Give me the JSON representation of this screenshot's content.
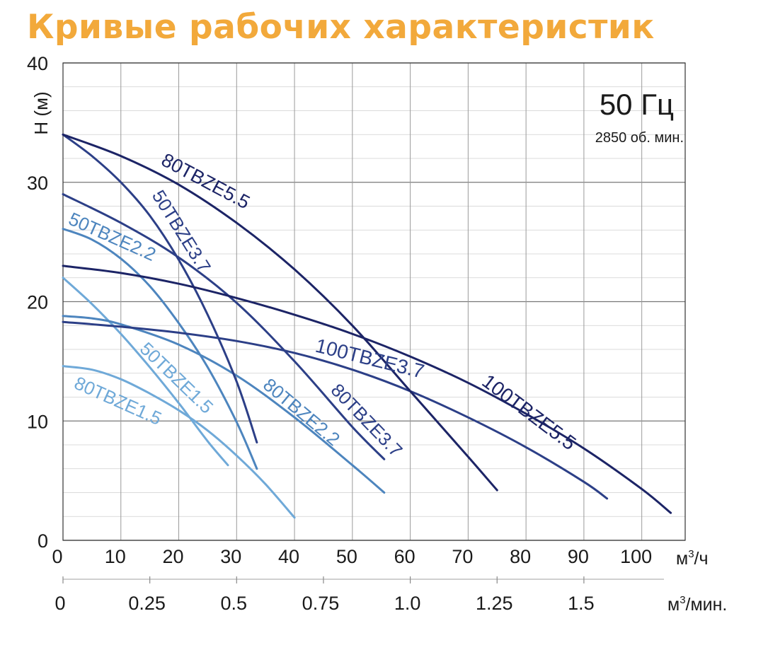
{
  "chart_data": {
    "type": "line",
    "title": "Кривые рабочих характеристик",
    "title_color": "#F2A93B",
    "ylabel": "H (м)",
    "xlabel": "м³/ч",
    "xlabel_base": "м",
    "xlabel_sup": "3",
    "xlabel_rest": "/ч",
    "x2label": "м³/мин.",
    "x2label_base": "м",
    "x2label_sup": "3",
    "x2label_rest": "/мин.",
    "frequency_label": "50 Гц",
    "speed_label": "2850 об. мин.",
    "xlim": [
      0,
      107.5
    ],
    "ylim": [
      0,
      40
    ],
    "x_ticks": [
      0,
      10,
      20,
      30,
      40,
      50,
      60,
      70,
      80,
      90,
      100
    ],
    "y_ticks": [
      0,
      10,
      20,
      30,
      40
    ],
    "x2_ticks": [
      {
        "label": "0",
        "value_m3h": 0
      },
      {
        "label": "0.25",
        "value_m3h": 15
      },
      {
        "label": "0.5",
        "value_m3h": 30
      },
      {
        "label": "0.75",
        "value_m3h": 45
      },
      {
        "label": "1.0",
        "value_m3h": 60
      },
      {
        "label": "1.25",
        "value_m3h": 75
      },
      {
        "label": "1.5",
        "value_m3h": 90
      }
    ],
    "grid": true,
    "series": [
      {
        "name": "50TBZE1.5",
        "color": "#6FA9D8",
        "x": [
          0,
          5,
          10,
          15,
          20,
          25,
          28.5
        ],
        "y": [
          22,
          19.8,
          17.3,
          14.5,
          11.5,
          8.3,
          6.3
        ]
      },
      {
        "name": "80TBZE1.5",
        "color": "#6FA9D8",
        "x": [
          0,
          5,
          10,
          15,
          20,
          25,
          30,
          35,
          40
        ],
        "y": [
          14.6,
          14.3,
          13.5,
          12.3,
          10.9,
          9.2,
          7.1,
          4.7,
          1.9
        ]
      },
      {
        "name": "50TBZE2.2",
        "color": "#4D85BE",
        "x": [
          0,
          5,
          10,
          15,
          20,
          25,
          30,
          33.5
        ],
        "y": [
          26.1,
          25.2,
          23.6,
          21.3,
          18.2,
          14.5,
          9.9,
          6.0
        ]
      },
      {
        "name": "80TBZE2.2",
        "color": "#4D85BE",
        "x": [
          0,
          5,
          10,
          20,
          30,
          40,
          50,
          55.5
        ],
        "y": [
          18.8,
          18.6,
          18.1,
          16.4,
          13.8,
          10.3,
          6.3,
          4.0
        ]
      },
      {
        "name": "50TBZE3.7",
        "color": "#2C3F87",
        "x": [
          0,
          5,
          10,
          15,
          20,
          25,
          30,
          33.5
        ],
        "y": [
          34.0,
          32.2,
          30.0,
          27.2,
          23.5,
          18.9,
          13.3,
          8.2
        ]
      },
      {
        "name": "80TBZE3.7",
        "color": "#2C3F87",
        "x": [
          0,
          10,
          20,
          30,
          40,
          50,
          55.5
        ],
        "y": [
          29.0,
          26.6,
          23.7,
          19.9,
          15.0,
          9.5,
          6.8
        ]
      },
      {
        "name": "100TBZE3.7",
        "color": "#2C3F87",
        "x": [
          0,
          10,
          20,
          30,
          40,
          50,
          60,
          70,
          80,
          90,
          94
        ],
        "y": [
          18.3,
          17.9,
          17.4,
          16.7,
          15.7,
          14.3,
          12.5,
          10.3,
          7.8,
          4.9,
          3.5
        ]
      },
      {
        "name": "80TBZE5.5",
        "color": "#1C2466",
        "x": [
          0,
          10,
          20,
          30,
          40,
          50,
          60,
          70,
          75
        ],
        "y": [
          34.0,
          32.2,
          29.8,
          26.6,
          22.7,
          18.0,
          12.5,
          7.0,
          4.2
        ]
      },
      {
        "name": "100TBZE5.5",
        "color": "#1C2466",
        "x": [
          0,
          10,
          20,
          30,
          40,
          50,
          60,
          70,
          80,
          90,
          100,
          105
        ],
        "y": [
          23.0,
          22.4,
          21.5,
          20.3,
          18.9,
          17.3,
          15.4,
          13.2,
          10.6,
          7.7,
          4.3,
          2.3
        ]
      }
    ]
  }
}
